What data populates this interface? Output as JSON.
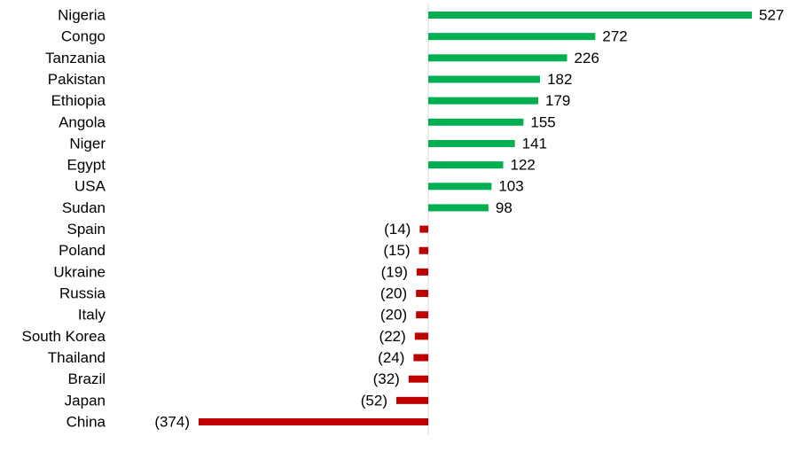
{
  "chart_data": {
    "type": "hbar",
    "categories": [
      "Nigeria",
      "Congo",
      "Tanzania",
      "Pakistan",
      "Ethiopia",
      "Angola",
      "Niger",
      "Egypt",
      "USA",
      "Sudan",
      "Spain",
      "Poland",
      "Ukraine",
      "Russia",
      "Italy",
      "South Korea",
      "Thailand",
      "Brazil",
      "Japan",
      "China"
    ],
    "values": [
      527,
      272,
      226,
      182,
      179,
      155,
      141,
      122,
      103,
      98,
      -14,
      -15,
      -19,
      -20,
      -20,
      -22,
      -24,
      -32,
      -52,
      -374
    ],
    "value_labels": [
      "527",
      "272",
      "226",
      "182",
      "179",
      "155",
      "141",
      "122",
      "103",
      "98",
      "(14)",
      "(15)",
      "(19)",
      "(20)",
      "(20)",
      "(22)",
      "(24)",
      "(32)",
      "(52)",
      "(374)"
    ],
    "positive_color": "#00b050",
    "negative_color": "#c00000"
  }
}
